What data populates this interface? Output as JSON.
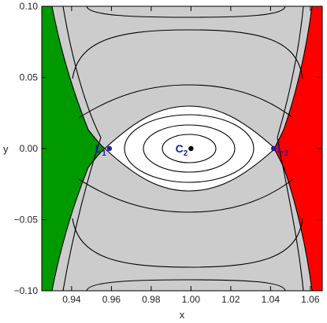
{
  "chart_data": {
    "type": "contour",
    "title": "",
    "xlabel": "x",
    "ylabel": "y",
    "xlim": [
      0.925,
      1.066
    ],
    "ylim": [
      -0.1,
      0.1
    ],
    "x_ticks": [
      0.94,
      0.96,
      0.98,
      1.0,
      1.02,
      1.04,
      1.06
    ],
    "x_tick_labels": [
      "0.94",
      "0.96",
      "0.98",
      "1.00",
      "1.02",
      "1.04",
      "1.06"
    ],
    "y_ticks": [
      -0.1,
      -0.05,
      0.0,
      0.05,
      0.1
    ],
    "y_tick_labels": [
      "−0.10",
      "−0.05",
      "0.00",
      "0.05",
      "0.10"
    ],
    "colors": {
      "left_region": "#009900",
      "right_region": "#ff0000",
      "forbidden_region": "#cccccc",
      "inner_region": "#ffffff",
      "contour": "#000000",
      "points": "#1a1aaa",
      "center_point": "#000000"
    },
    "points": [
      {
        "name": "L",
        "sub": "1",
        "x": 0.959,
        "y": 0.0
      },
      {
        "name": "L",
        "sub": "2",
        "x": 1.0415,
        "y": 0.0
      },
      {
        "name": "C",
        "sub": "2",
        "x": 1.0,
        "y": 0.0
      }
    ]
  }
}
